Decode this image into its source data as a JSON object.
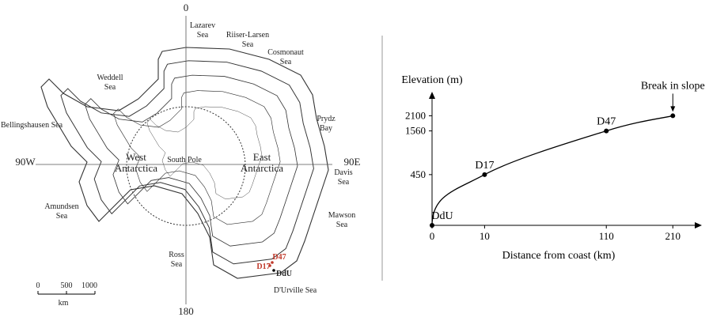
{
  "map": {
    "labels": {
      "north": "0",
      "south": "180",
      "west": "90W",
      "east": "90E",
      "lazarev": "Lazarev Sea",
      "riiser": "Riiser-Larsen Sea",
      "cosmonaut": "Cosmonaut Sea",
      "weddell": "Weddell Sea",
      "prydz": "Prydz Bay",
      "bellingshausen": "Bellingshausen Sea",
      "west_antarctica": "West Antarctica",
      "south_pole": "South Pole",
      "east_antarctica": "East Antarctica",
      "davis": "Davis Sea",
      "amundsen": "Amundsen Sea",
      "mawson": "Mawson Sea",
      "ross": "Ross Sea",
      "durville": "D'Urville Sea",
      "d47": "D47",
      "d17": "D17",
      "ddu": "DdU"
    },
    "scale_bar": {
      "ticks": [
        "0",
        "500",
        "1000"
      ],
      "unit": "km"
    }
  },
  "chart_data": {
    "type": "line",
    "x_label": "Distance from coast (km)",
    "y_label": "Elevation (m)",
    "xscale": "sqrt",
    "yscale": "sqrt",
    "xlim": [
      0,
      250
    ],
    "ylim": [
      0,
      2800
    ],
    "xticks": [
      0,
      10,
      110,
      210
    ],
    "yticks": [
      450,
      1560,
      2100
    ],
    "series": [
      {
        "color": "#000000",
        "x": [
          0,
          10,
          110,
          210
        ],
        "values": [
          0,
          450,
          1560,
          2100
        ],
        "point_labels": [
          "DdU",
          "D17",
          "D47",
          "Break in slope"
        ]
      }
    ]
  }
}
